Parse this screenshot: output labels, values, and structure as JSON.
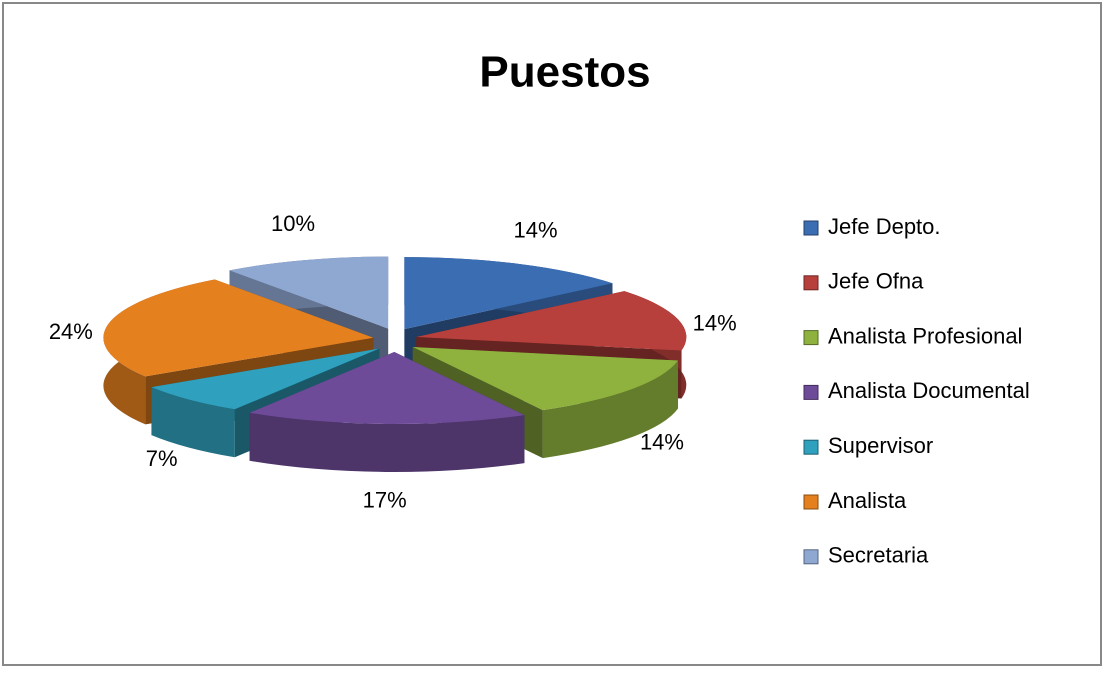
{
  "chart_data": {
    "type": "pie",
    "title": "Puestos",
    "categories": [
      "Jefe Depto.",
      "Jefe Ofna",
      "Analista Profesional",
      "Analista Documental",
      "Supervisor",
      "Analista",
      "Secretaria"
    ],
    "values": [
      14,
      14,
      14,
      17,
      7,
      24,
      10
    ],
    "value_labels": [
      "14%",
      "14%",
      "14%",
      "17%",
      "7%",
      "24%",
      "10%"
    ],
    "colors": [
      "#3b6db3",
      "#b8403c",
      "#8fb23f",
      "#6e4b98",
      "#2fa0bd",
      "#e5801f",
      "#8fa8d2"
    ],
    "legend": "right"
  }
}
